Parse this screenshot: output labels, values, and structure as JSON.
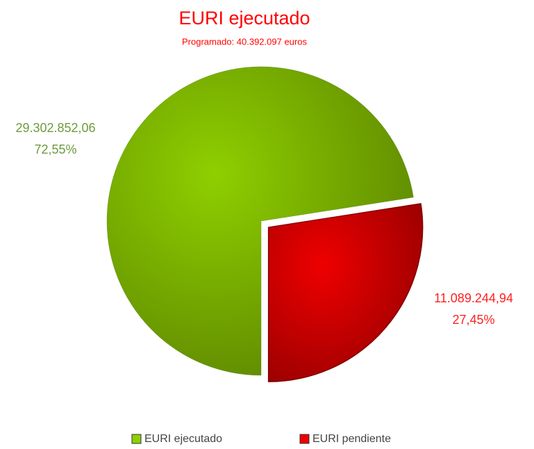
{
  "chart_data": {
    "type": "pie",
    "title": "EURI ejecutado",
    "subtitle": "Programado: 40.392.097 euros",
    "categories": [
      "EURI ejecutado",
      "EURI pendiente"
    ],
    "values": [
      29302852.06,
      11089244.94
    ],
    "value_labels": [
      "29.302.852,06",
      "11.089.244,94"
    ],
    "percentages": [
      72.55,
      27.45
    ],
    "percentage_labels": [
      "72,55%",
      "27,45%"
    ],
    "colors": [
      "#8fcf00",
      "#ee0000"
    ],
    "label_colors": [
      "#6e9a3c",
      "#ff2020"
    ],
    "title_color": "#ff0000",
    "legend": "bottom"
  }
}
